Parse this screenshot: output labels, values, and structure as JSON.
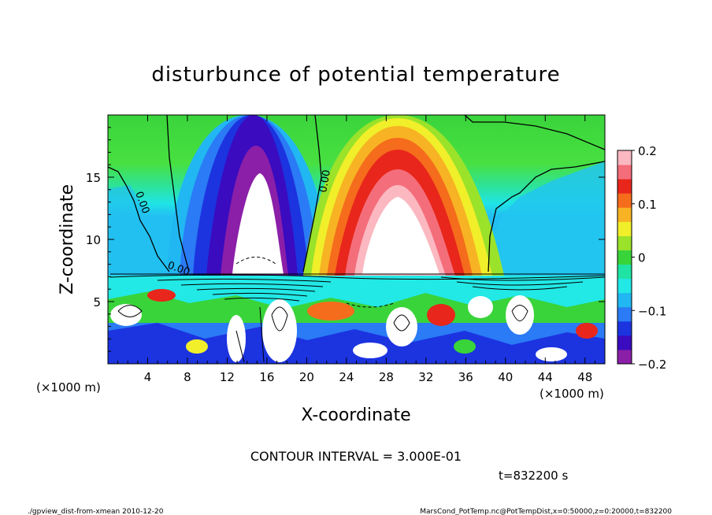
{
  "chart_data": {
    "type": "heatmap",
    "title": "disturbunce of potential temperature",
    "xlabel": "X-coordinate",
    "ylabel": "Z-coordinate",
    "x_unit_left": "(×1000 m)",
    "x_unit_right": "(×1000 m)",
    "xlim": [
      0,
      50
    ],
    "ylim": [
      0,
      20
    ],
    "x_ticks": [
      4,
      8,
      12,
      16,
      20,
      24,
      28,
      32,
      36,
      40,
      44,
      48
    ],
    "x_tick_labels": [
      "4",
      "8",
      "12",
      "16",
      "20",
      "24",
      "28",
      "32",
      "36",
      "40",
      "44",
      "48"
    ],
    "y_ticks": [
      5,
      10,
      15
    ],
    "y_tick_labels": [
      "5",
      "10",
      "15"
    ],
    "colorbar": {
      "range": [
        -0.2,
        0.2
      ],
      "ticks": [
        0.2,
        0.1,
        0,
        -0.1,
        -0.2
      ],
      "tick_labels": [
        "0.2",
        "0.1",
        "0",
        "−0.1",
        "−0.2"
      ],
      "colors": [
        "#8b1fa8",
        "#3a0bbf",
        "#1c33e0",
        "#2a7bf5",
        "#21b7f2",
        "#22e8e6",
        "#1fe3a4",
        "#39d43a",
        "#9be22a",
        "#f0ef2a",
        "#f7b323",
        "#f56c1c",
        "#e8261b",
        "#f46d7a",
        "#fbb8c0"
      ]
    },
    "contour_interval_text": "CONTOUR INTERVAL = 3.000E-01",
    "contour_labels": [
      "0.00",
      "0.00",
      "0.00"
    ],
    "regions": [
      {
        "kind": "negative-plume",
        "x_center": 15.5,
        "z_top": 20,
        "z_bottom": 7.5,
        "min_value": -0.2
      },
      {
        "kind": "positive-plume",
        "x_center": 28.5,
        "z_top": 19.5,
        "z_bottom": 7.5,
        "max_value": 0.2
      },
      {
        "kind": "background",
        "value": 0.0
      }
    ],
    "time_label": "t=832200 s"
  },
  "footer": {
    "left": "./gpview_dist-from-xmean  2010-12-20",
    "right": "MarsCond_PotTemp.nc@PotTempDist,x=0:50000,z=0:20000,t=832200"
  }
}
